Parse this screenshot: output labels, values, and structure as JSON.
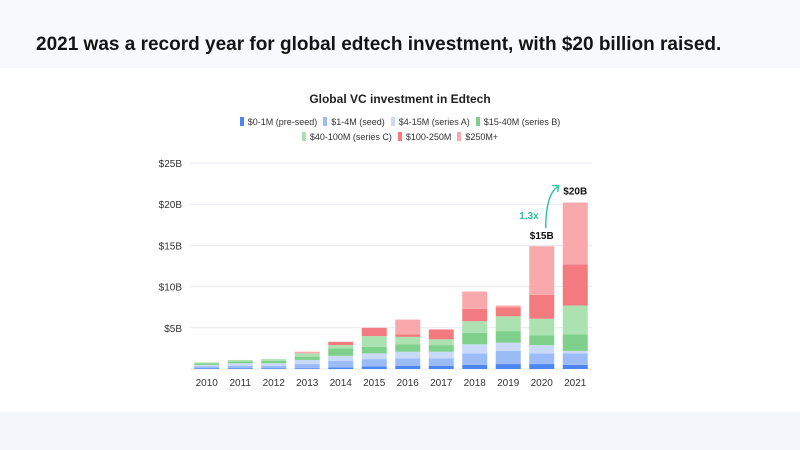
{
  "page": {
    "headline": "2021 was a record year for global edtech investment, with $20 billion raised."
  },
  "colors": {
    "pre_seed": "#4e86f0",
    "seed": "#9bbcf7",
    "series_a": "#c9daf8",
    "series_b": "#7fd08a",
    "series_c": "#abe2b0",
    "stage_100_250": "#f37a7e",
    "stage_250_plus": "#f9a9ab",
    "growth": "#2ec4a0"
  },
  "chart_data": {
    "type": "bar",
    "stacked": true,
    "title": "Global VC investment in Edtech",
    "xlabel": "",
    "ylabel": "",
    "ylim": [
      0,
      25
    ],
    "yticks": [
      "$5B",
      "$10B",
      "$15B",
      "$20B",
      "$25B"
    ],
    "ytick_values": [
      5,
      10,
      15,
      20,
      25
    ],
    "grid": true,
    "legend_position": "top-center",
    "categories": [
      "2010",
      "2011",
      "2012",
      "2013",
      "2014",
      "2015",
      "2016",
      "2017",
      "2018",
      "2019",
      "2020",
      "2021"
    ],
    "series": [
      {
        "name": "$0-1M (pre-seed)",
        "color_key": "pre_seed",
        "values": [
          0.1,
          0.1,
          0.1,
          0.1,
          0.2,
          0.3,
          0.4,
          0.4,
          0.5,
          0.6,
          0.6,
          0.5
        ]
      },
      {
        "name": "$1-4M (seed)",
        "color_key": "seed",
        "values": [
          0.2,
          0.3,
          0.3,
          0.5,
          0.8,
          0.9,
          0.9,
          0.9,
          1.4,
          1.6,
          1.3,
          1.4
        ]
      },
      {
        "name": "$4-15M (series A)",
        "color_key": "series_a",
        "values": [
          0.2,
          0.3,
          0.3,
          0.5,
          0.6,
          0.7,
          0.8,
          0.8,
          1.1,
          1.0,
          1.0,
          0.3
        ]
      },
      {
        "name": "$15-40M (series B)",
        "color_key": "series_b",
        "values": [
          0.2,
          0.2,
          0.3,
          0.4,
          0.9,
          0.8,
          0.9,
          0.8,
          1.4,
          1.4,
          1.2,
          2.0
        ]
      },
      {
        "name": "$40-100M (series C)",
        "color_key": "series_c",
        "values": [
          0.1,
          0.2,
          0.2,
          0.4,
          0.4,
          1.3,
          0.9,
          0.7,
          1.4,
          1.8,
          2.0,
          3.5
        ]
      },
      {
        "name": "$100-250M",
        "color_key": "stage_100_250",
        "values": [
          0.0,
          0.0,
          0.0,
          0.0,
          0.4,
          1.0,
          0.3,
          1.2,
          1.5,
          1.1,
          2.9,
          5.0
        ]
      },
      {
        "name": "$250M+",
        "color_key": "stage_250_plus",
        "values": [
          0.0,
          0.0,
          0.0,
          0.2,
          0.0,
          0.0,
          1.8,
          0.0,
          2.1,
          0.2,
          5.9,
          7.5
        ]
      }
    ],
    "annotations": {
      "total_2020": "$15B",
      "total_2021": "$20B",
      "growth": "1.3x"
    }
  }
}
